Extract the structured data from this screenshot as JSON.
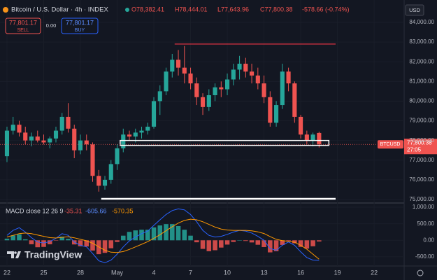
{
  "chart_data": [
    {
      "type": "candlestick",
      "title": "Bitcoin / U.S. Dollar · 4h · INDEX",
      "ohlc_labels": [
        "O78,382.41",
        "H78,444.01",
        "L77,643.96",
        "C77,800.38"
      ],
      "change": "-578.66 (-0.74%)",
      "up_color": "#26a69a",
      "down_color": "#ef5350",
      "open": [
        77200,
        78500,
        78800,
        78400,
        78000,
        78200,
        78000,
        77900,
        78100,
        78500,
        79200,
        78600,
        77500,
        78000,
        77800,
        76200,
        75700,
        76000,
        76800,
        77600,
        78300,
        78200,
        78400,
        78500,
        78700,
        80000,
        80500,
        81500,
        82100,
        81700,
        81400,
        80900,
        80200,
        79700,
        80300,
        80700,
        80600,
        81100,
        81600,
        81900,
        81500,
        81300,
        80900,
        80200,
        78900,
        79800,
        81500,
        80900,
        79200,
        78300,
        78000,
        78382.41
      ],
      "high": [
        78700,
        79200,
        79000,
        78700,
        78400,
        78500,
        78300,
        78200,
        78700,
        79400,
        79900,
        78800,
        78300,
        78300,
        77900,
        76500,
        76200,
        77000,
        77800,
        78600,
        78500,
        78600,
        78700,
        78900,
        80200,
        80800,
        81700,
        82400,
        82600,
        82800,
        81700,
        81200,
        80400,
        80600,
        80900,
        81000,
        81400,
        81900,
        82300,
        82200,
        81900,
        81700,
        81300,
        80500,
        80000,
        81900,
        81700,
        81000,
        79300,
        78500,
        78400,
        78444.01
      ],
      "low": [
        76900,
        78300,
        78200,
        77800,
        77700,
        77900,
        77800,
        77600,
        77900,
        78300,
        78400,
        77100,
        77300,
        77500,
        75900,
        75400,
        75500,
        75800,
        76500,
        77400,
        78000,
        77900,
        78100,
        78300,
        78600,
        79300,
        80300,
        81200,
        81300,
        80900,
        80600,
        79800,
        79300,
        79500,
        80000,
        80200,
        80300,
        80800,
        81100,
        81200,
        80900,
        80600,
        79900,
        78700,
        78700,
        79600,
        80500,
        78900,
        78100,
        77800,
        77700,
        77643.96
      ],
      "close": [
        78500,
        78800,
        78400,
        78000,
        78200,
        78000,
        77900,
        78100,
        78500,
        79200,
        78600,
        77500,
        78000,
        77800,
        76200,
        75700,
        76000,
        76800,
        77600,
        78300,
        78200,
        78400,
        78500,
        78700,
        80000,
        80500,
        81500,
        82100,
        81700,
        81400,
        80900,
        80200,
        79700,
        80300,
        80700,
        80600,
        81100,
        81600,
        81900,
        81500,
        81300,
        80900,
        80200,
        78900,
        79800,
        81500,
        80900,
        79200,
        78300,
        78000,
        78300,
        77800.38
      ],
      "xlim": [
        -1.14,
        64.9
      ],
      "xticks": [
        {
          "value": 0,
          "label": "22"
        },
        {
          "value": 6,
          "label": "25"
        },
        {
          "value": 12,
          "label": "28"
        },
        {
          "value": 18,
          "label": "May"
        },
        {
          "value": 24,
          "label": "4"
        },
        {
          "value": 30,
          "label": "7"
        },
        {
          "value": 36,
          "label": "10"
        },
        {
          "value": 42,
          "label": "13"
        },
        {
          "value": 48,
          "label": "16"
        },
        {
          "value": 54,
          "label": "19"
        },
        {
          "value": 60,
          "label": "22"
        }
      ],
      "ylim": [
        74822,
        85138
      ],
      "yticks": [
        {
          "value": 75000,
          "label": "75,000.00"
        },
        {
          "value": 76000,
          "label": "76,000.00"
        },
        {
          "value": 77000,
          "label": "77,000.00"
        },
        {
          "value": 78000,
          "label": "78,000.00"
        },
        {
          "value": 79000,
          "label": "79,000.00"
        },
        {
          "value": 80000,
          "label": "80,000.00"
        },
        {
          "value": 81000,
          "label": "81,000.00"
        },
        {
          "value": 82000,
          "label": "82,000.00"
        },
        {
          "value": 83000,
          "label": "83,000.00"
        },
        {
          "value": 84000,
          "label": "84,000.00"
        }
      ],
      "grid": true,
      "lines": [
        {
          "value": 82900,
          "from": 27.4,
          "to": 53.7,
          "color": "#f23645"
        },
        {
          "value": 75035,
          "from": 15.4,
          "to": 53.7,
          "color": "#ffffff"
        }
      ],
      "zone": {
        "low": 77750,
        "high": 78000,
        "from": 18.5,
        "to": 52.6,
        "color": "#ffffff"
      },
      "symbol_tag": "BTCUSD",
      "price_tag": "77,800.38",
      "countdown": "27:05"
    },
    {
      "type": "macd",
      "title": "MACD close 12 26 9",
      "series": [
        {
          "color": "#ef5350",
          "up_color": "#26a69a",
          "values": [
            50,
            150,
            180,
            30,
            -120,
            -210,
            -200,
            -120,
            -10,
            110,
            45,
            -125,
            -180,
            -185,
            -310,
            -420,
            -380,
            -240,
            -50,
            140,
            255,
            300,
            320,
            320,
            390,
            450,
            490,
            490,
            430,
            320,
            140,
            -60,
            -260,
            -330,
            -300,
            -220,
            -130,
            -50,
            0,
            -20,
            -65,
            -135,
            -205,
            -365,
            -330,
            -140,
            -20,
            -90,
            -200,
            -250,
            -180,
            -35.31
          ]
        },
        {
          "color": "#2962ff",
          "values": [
            150,
            300,
            380,
            250,
            80,
            -50,
            -80,
            -40,
            60,
            200,
            150,
            -50,
            -150,
            -200,
            -400,
            -620,
            -680,
            -600,
            -420,
            -200,
            -20,
            100,
            200,
            280,
            450,
            620,
            780,
            900,
            950,
            920,
            780,
            560,
            300,
            150,
            100,
            120,
            180,
            250,
            300,
            280,
            220,
            120,
            0,
            -250,
            -300,
            -150,
            -50,
            -150,
            -350,
            -520,
            -600,
            -605.66
          ]
        },
        {
          "color": "#ff9800",
          "values": [
            100,
            150,
            200,
            220,
            200,
            160,
            120,
            80,
            70,
            90,
            105,
            75,
            30,
            -15,
            -90,
            -200,
            -300,
            -360,
            -370,
            -340,
            -275,
            -200,
            -120,
            -40,
            60,
            170,
            290,
            410,
            520,
            600,
            640,
            620,
            560,
            480,
            400,
            340,
            310,
            300,
            300,
            300,
            285,
            255,
            205,
            115,
            30,
            -10,
            -30,
            -60,
            -150,
            -270,
            -420,
            -570.35
          ]
        }
      ],
      "ylim": [
        -777,
        1128
      ],
      "yticks": [
        {
          "value": 1000,
          "label": "1,000.00"
        },
        {
          "value": 500,
          "label": "500.00"
        },
        {
          "value": 0,
          "label": "0.00"
        },
        {
          "value": -500,
          "label": "-500.00"
        }
      ]
    }
  ],
  "currency": "USD",
  "order_panel": {
    "sell_price": "77,801.17",
    "sell": "SELL",
    "spread": "0.00",
    "buy_price": "77,801.17",
    "buy": "BUY"
  },
  "brand": "TradingView"
}
